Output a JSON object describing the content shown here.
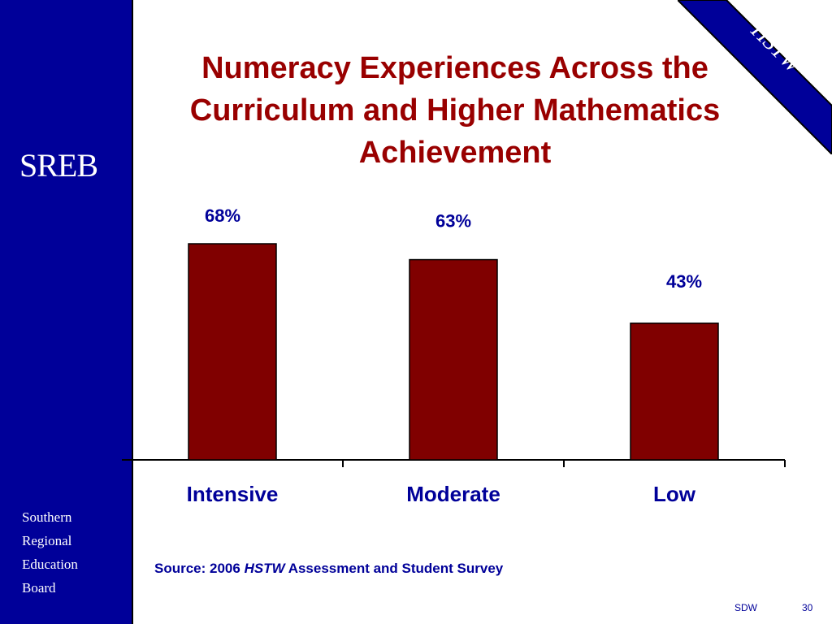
{
  "slide": {
    "title_lines": [
      "Numeracy Experiences Across the",
      "Curriculum and Higher Mathematics",
      "Achievement"
    ],
    "logo": "SREB",
    "org_name": [
      "Southern",
      "Regional",
      "Education",
      "Board"
    ],
    "corner_tag": "HSTW",
    "source_prefix": "Source: 2006 ",
    "source_italic": "HSTW",
    "source_suffix": " Assessment and Student Survey",
    "footer_left": "SDW",
    "footer_page": "30"
  },
  "colors": {
    "sidebar": "#000099",
    "title": "#990000",
    "bar": "#800000",
    "labels": "#000099"
  },
  "chart_data": {
    "type": "bar",
    "categories": [
      "Intensive",
      "Moderate",
      "Low"
    ],
    "values": [
      68,
      63,
      43
    ],
    "data_labels": [
      "68%",
      "63%",
      "43%"
    ],
    "title": "",
    "xlabel": "",
    "ylabel": "",
    "unit": "%",
    "ylim": [
      0,
      68
    ],
    "grid": false,
    "legend": "none"
  }
}
